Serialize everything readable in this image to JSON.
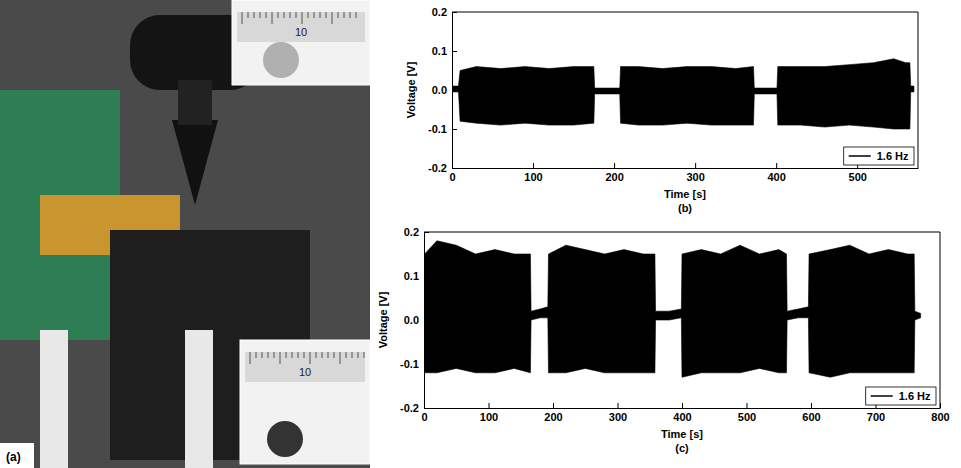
{
  "image_panel": {
    "label": "(a)",
    "inset_texts": [
      "10",
      "10"
    ]
  },
  "chart_data": [
    {
      "type": "area",
      "panel_label": "(b)",
      "x_label": "Time [s]",
      "y_label": "Voltage [V]",
      "legend": "lower right",
      "xlim": [
        0,
        575
      ],
      "xticks": [
        0,
        100,
        200,
        300,
        400,
        500
      ],
      "ylim": [
        -0.2,
        0.2
      ],
      "yticks": [
        -0.2,
        -0.1,
        {
          "value": 0,
          "label": "0.0"
        },
        0.1,
        0.2
      ],
      "x": [
        0,
        8,
        10,
        30,
        60,
        90,
        120,
        150,
        175,
        176,
        190,
        207,
        208,
        230,
        260,
        290,
        320,
        350,
        372,
        373,
        390,
        401,
        402,
        430,
        460,
        490,
        520,
        545,
        560,
        565,
        566,
        570
      ],
      "series": [
        {
          "name": "1.6 Hz",
          "color": "#000000",
          "upper": [
            0.01,
            0.01,
            0.05,
            0.06,
            0.055,
            0.06,
            0.055,
            0.06,
            0.06,
            0.005,
            0.005,
            0.005,
            0.06,
            0.06,
            0.055,
            0.06,
            0.06,
            0.055,
            0.06,
            0.005,
            0.005,
            0.005,
            0.06,
            0.06,
            0.06,
            0.065,
            0.07,
            0.08,
            0.07,
            0.07,
            0.01,
            0.01
          ],
          "lower": [
            -0.005,
            -0.005,
            -0.08,
            -0.085,
            -0.09,
            -0.085,
            -0.09,
            -0.09,
            -0.085,
            -0.01,
            -0.01,
            -0.01,
            -0.085,
            -0.09,
            -0.09,
            -0.085,
            -0.09,
            -0.09,
            -0.09,
            -0.01,
            -0.01,
            -0.01,
            -0.09,
            -0.09,
            -0.095,
            -0.09,
            -0.095,
            -0.1,
            -0.1,
            -0.1,
            -0.005,
            -0.005
          ]
        }
      ]
    },
    {
      "type": "area",
      "panel_label": "(c)",
      "x_label": "Time [s]",
      "y_label": "Voltage [V]",
      "legend": "lower right",
      "xlim": [
        0,
        800
      ],
      "xticks": [
        0,
        100,
        200,
        300,
        400,
        500,
        600,
        700,
        800
      ],
      "ylim": [
        -0.2,
        0.2
      ],
      "yticks": [
        -0.2,
        -0.1,
        {
          "value": 0,
          "label": "0.0"
        },
        0.1,
        0.2
      ],
      "x": [
        0,
        1,
        20,
        50,
        80,
        110,
        140,
        165,
        166,
        180,
        192,
        193,
        220,
        250,
        280,
        310,
        340,
        358,
        359,
        380,
        399,
        400,
        430,
        460,
        490,
        520,
        550,
        562,
        563,
        580,
        596,
        597,
        630,
        660,
        690,
        720,
        750,
        760,
        761,
        770
      ],
      "series": [
        {
          "name": "1.6 Hz",
          "color": "#000000",
          "upper": [
            0.0,
            0.15,
            0.18,
            0.17,
            0.15,
            0.16,
            0.15,
            0.15,
            0.02,
            0.025,
            0.03,
            0.15,
            0.17,
            0.16,
            0.15,
            0.16,
            0.15,
            0.15,
            0.02,
            0.02,
            0.025,
            0.15,
            0.16,
            0.15,
            0.17,
            0.15,
            0.16,
            0.15,
            0.02,
            0.025,
            0.03,
            0.15,
            0.16,
            0.17,
            0.15,
            0.16,
            0.15,
            0.15,
            0.02,
            0.015
          ],
          "lower": [
            -0.01,
            -0.12,
            -0.12,
            -0.11,
            -0.12,
            -0.12,
            -0.11,
            -0.12,
            0.0,
            0.005,
            0.005,
            -0.12,
            -0.12,
            -0.11,
            -0.12,
            -0.12,
            -0.12,
            -0.12,
            0.0,
            0.0,
            0.005,
            -0.13,
            -0.12,
            -0.12,
            -0.12,
            -0.11,
            -0.12,
            -0.12,
            0.0,
            0.005,
            0.005,
            -0.12,
            -0.13,
            -0.12,
            -0.12,
            -0.12,
            -0.12,
            -0.12,
            0.0,
            0.005
          ]
        }
      ]
    }
  ]
}
